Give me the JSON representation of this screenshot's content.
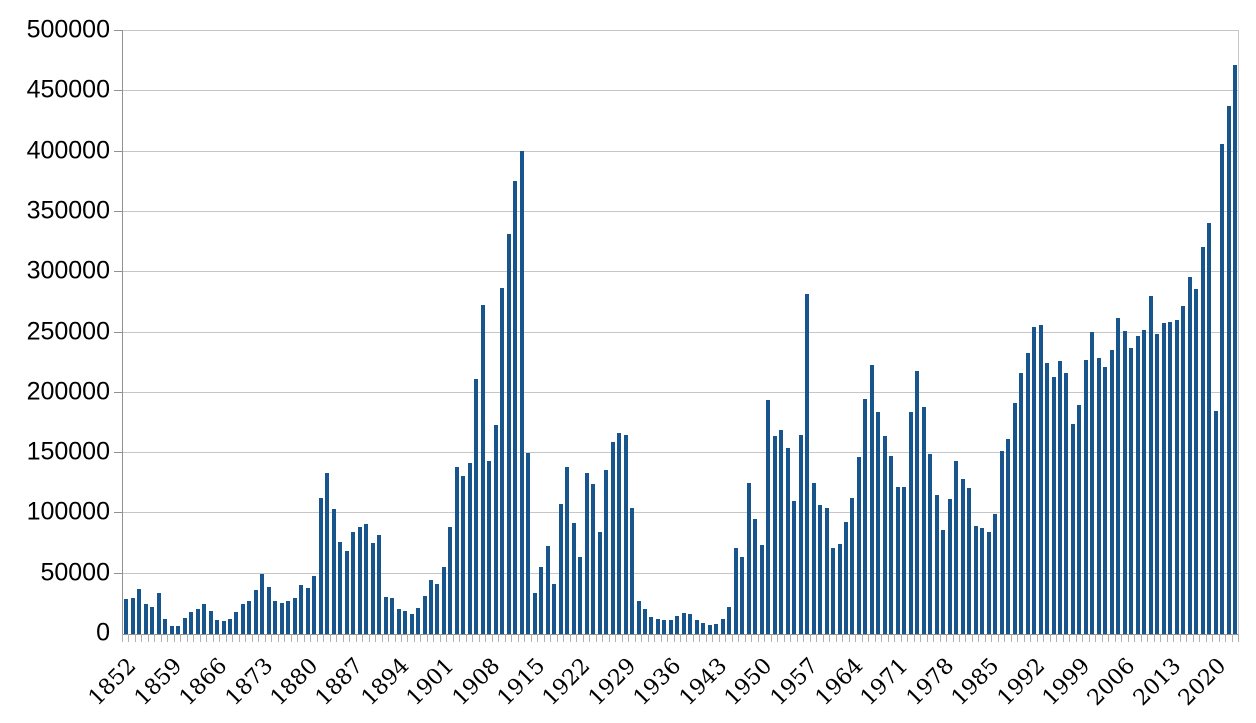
{
  "chart_data": {
    "type": "bar",
    "title": "",
    "xlabel": "",
    "ylabel": "",
    "start_year": 1852,
    "end_year": 2023,
    "values": [
      29307,
      29464,
      37263,
      25296,
      22439,
      33854,
      12339,
      6300,
      6276,
      13589,
      18294,
      21000,
      24779,
      18958,
      11427,
      10666,
      12765,
      18630,
      24706,
      27773,
      36578,
      50050,
      39373,
      27382,
      25633,
      27082,
      29807,
      40492,
      38505,
      47991,
      112458,
      133624,
      103824,
      76169,
      69152,
      84526,
      88766,
      91600,
      75067,
      82165,
      30996,
      29633,
      20829,
      18790,
      16835,
      21716,
      31900,
      44543,
      41681,
      55747,
      89102,
      138660,
      131252,
      141465,
      211653,
      272409,
      143326,
      173694,
      286839,
      331288,
      375756,
      400870,
      150484,
      33665,
      55914,
      72910,
      41845,
      107698,
      138824,
      91728,
      64224,
      133729,
      124164,
      84907,
      135982,
      158886,
      166783,
      164993,
      104806,
      27530,
      20591,
      14382,
      12476,
      11277,
      11643,
      15101,
      17244,
      16994,
      11324,
      9329,
      7576,
      8504,
      12801,
      22722,
      71719,
      64127,
      125414,
      95217,
      73912,
      194391,
      164498,
      168868,
      154227,
      109946,
      164857,
      282164,
      124851,
      106928,
      104111,
      71698,
      74856,
      93151,
      112606,
      146758,
      194743,
      222876,
      183974,
      164531,
      147713,
      121900,
      122006,
      184200,
      218465,
      187881,
      149429,
      114914,
      86313,
      112093,
      143136,
      128641,
      121176,
      89188,
      88271,
      84346,
      99354,
      152077,
      161584,
      191555,
      216452,
      232808,
      254790,
      256641,
      224385,
      212866,
      226071,
      216035,
      174195,
      189951,
      227455,
      250637,
      229048,
      221349,
      235823,
      262242,
      251640,
      236753,
      247244,
      252172,
      280687,
      248748,
      257887,
      258953,
      260404,
      271845,
      296346,
      286479,
      321065,
      341175,
      184606,
      405999,
      437539,
      471771
    ],
    "ylim": [
      0,
      500000
    ],
    "ytick_interval": 50000,
    "ytick_labels": [
      "0",
      "50000",
      "100000",
      "150000",
      "200000",
      "250000",
      "300000",
      "350000",
      "400000",
      "450000",
      "500000"
    ],
    "xtick_step": 7,
    "xtick_labels": [
      "1852",
      "1859",
      "1866",
      "1873",
      "1880",
      "1887",
      "1894",
      "1901",
      "1908",
      "1915",
      "1922",
      "1929",
      "1936",
      "1943",
      "1950",
      "1957",
      "1964",
      "1971",
      "1978",
      "1985",
      "1992",
      "1999",
      "2006",
      "2013",
      "2020"
    ],
    "bar_color": "#18558c",
    "gridline_color": "#c6c6c6",
    "axis_color": "#919191",
    "tick_color": "#b0b0b0",
    "grid": true,
    "legend_position": "none"
  }
}
